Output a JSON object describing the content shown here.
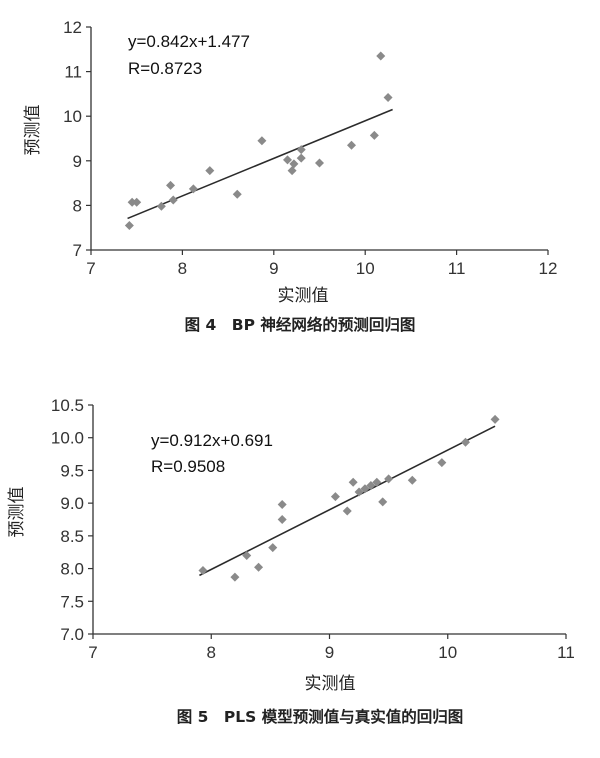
{
  "chart_data": [
    {
      "type": "scatter",
      "title": "",
      "caption": "图 4　BP 神经网络的预测回归图",
      "xlabel": "实测值",
      "ylabel": "预测值",
      "xlim": [
        7,
        12
      ],
      "ylim": [
        7,
        12
      ],
      "xticks": [
        "7",
        "8",
        "9",
        "10",
        "11",
        "12"
      ],
      "yticks": [
        "7",
        "8",
        "9",
        "10",
        "11",
        "12"
      ],
      "equation": "y=0.842x+1.477",
      "r_label": "R=0.8723",
      "fit": {
        "slope": 0.842,
        "intercept": 1.477,
        "x_range": [
          7.4,
          10.3
        ]
      },
      "points": [
        {
          "x": 7.42,
          "y": 7.55
        },
        {
          "x": 7.45,
          "y": 8.07
        },
        {
          "x": 7.5,
          "y": 8.07
        },
        {
          "x": 7.77,
          "y": 7.98
        },
        {
          "x": 7.87,
          "y": 8.45
        },
        {
          "x": 7.9,
          "y": 8.12
        },
        {
          "x": 8.12,
          "y": 8.37
        },
        {
          "x": 8.3,
          "y": 8.78
        },
        {
          "x": 8.6,
          "y": 8.25
        },
        {
          "x": 8.87,
          "y": 9.45
        },
        {
          "x": 9.15,
          "y": 9.02
        },
        {
          "x": 9.2,
          "y": 8.78
        },
        {
          "x": 9.22,
          "y": 8.93
        },
        {
          "x": 9.3,
          "y": 9.06
        },
        {
          "x": 9.3,
          "y": 9.25
        },
        {
          "x": 9.5,
          "y": 8.95
        },
        {
          "x": 9.85,
          "y": 9.35
        },
        {
          "x": 10.1,
          "y": 9.57
        },
        {
          "x": 10.17,
          "y": 11.35
        },
        {
          "x": 10.25,
          "y": 10.42
        }
      ]
    },
    {
      "type": "scatter",
      "title": "",
      "caption": "图 5　PLS 模型预测值与真实值的回归图",
      "xlabel": "实测值",
      "ylabel": "预测值",
      "xlim": [
        7,
        11
      ],
      "ylim": [
        7.0,
        10.5
      ],
      "xticks": [
        "7",
        "8",
        "9",
        "10",
        "11"
      ],
      "yticks": [
        "7.0",
        "7.5",
        "8.0",
        "8.5",
        "9.0",
        "9.5",
        "10.0",
        "10.5"
      ],
      "equation": "y=0.912x+0.691",
      "r_label": "R=0.9508",
      "fit": {
        "slope": 0.912,
        "intercept": 0.691,
        "x_range": [
          7.9,
          10.4
        ]
      },
      "points": [
        {
          "x": 7.93,
          "y": 7.97
        },
        {
          "x": 8.2,
          "y": 7.87
        },
        {
          "x": 8.3,
          "y": 8.2
        },
        {
          "x": 8.4,
          "y": 8.02
        },
        {
          "x": 8.52,
          "y": 8.32
        },
        {
          "x": 8.6,
          "y": 8.75
        },
        {
          "x": 8.6,
          "y": 8.98
        },
        {
          "x": 9.05,
          "y": 9.1
        },
        {
          "x": 9.15,
          "y": 8.88
        },
        {
          "x": 9.2,
          "y": 9.32
        },
        {
          "x": 9.25,
          "y": 9.17
        },
        {
          "x": 9.3,
          "y": 9.22
        },
        {
          "x": 9.35,
          "y": 9.27
        },
        {
          "x": 9.4,
          "y": 9.32
        },
        {
          "x": 9.45,
          "y": 9.02
        },
        {
          "x": 9.5,
          "y": 9.37
        },
        {
          "x": 9.7,
          "y": 9.35
        },
        {
          "x": 9.95,
          "y": 9.62
        },
        {
          "x": 10.15,
          "y": 9.93
        },
        {
          "x": 10.4,
          "y": 10.28
        }
      ]
    }
  ]
}
